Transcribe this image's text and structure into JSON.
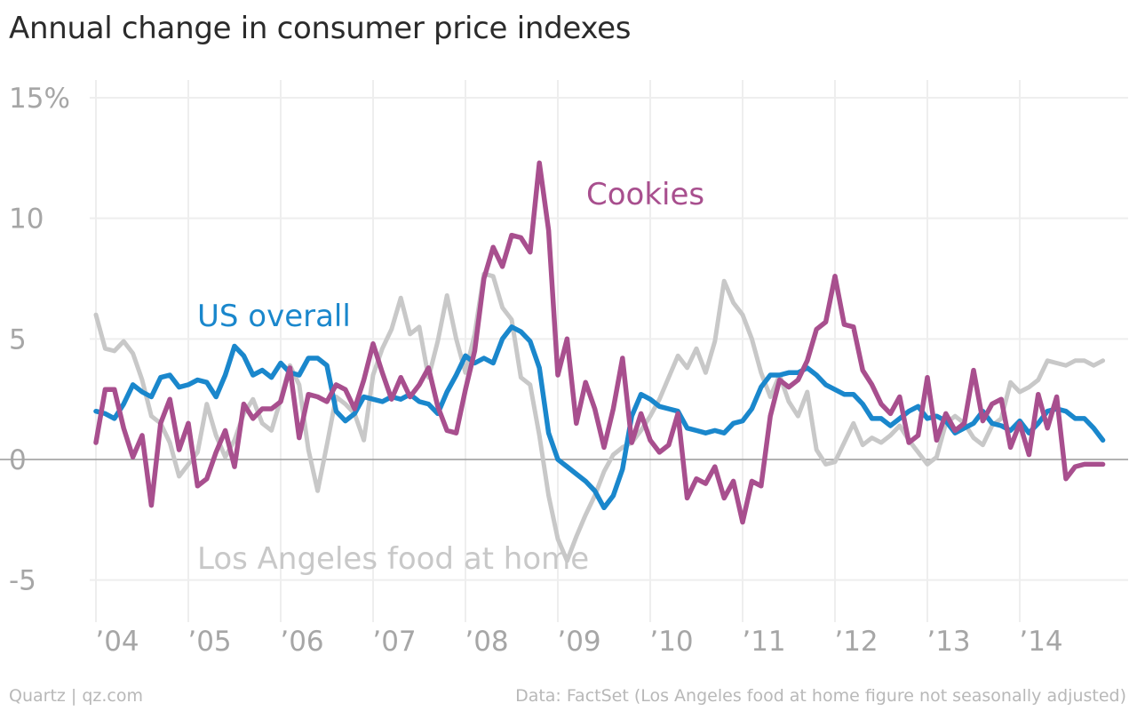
{
  "chart_data": {
    "type": "line",
    "title": "Annual change in consumer price indexes",
    "xlabel": "",
    "ylabel": "",
    "xlim": [
      2003.92,
      2014.95
    ],
    "ylim": [
      -6.5,
      16
    ],
    "y_ticks": [
      {
        "value": 15,
        "label": "15%"
      },
      {
        "value": 10,
        "label": "10"
      },
      {
        "value": 5,
        "label": "5"
      },
      {
        "value": 0,
        "label": "0"
      },
      {
        "value": -5,
        "label": "-5"
      }
    ],
    "x_ticks": [
      {
        "value": 2004,
        "label": "’04"
      },
      {
        "value": 2005,
        "label": "’05"
      },
      {
        "value": 2006,
        "label": "’06"
      },
      {
        "value": 2007,
        "label": "’07"
      },
      {
        "value": 2008,
        "label": "’08"
      },
      {
        "value": 2009,
        "label": "’09"
      },
      {
        "value": 2010,
        "label": "’10"
      },
      {
        "value": 2011,
        "label": "’11"
      },
      {
        "value": 2012,
        "label": "’12"
      },
      {
        "value": 2013,
        "label": "’13"
      },
      {
        "value": 2014,
        "label": "’14"
      }
    ],
    "grid": true,
    "legend": "inline labels",
    "series": [
      {
        "name": "Los Angeles food at home",
        "color": "#c8c8c8",
        "x": [
          2004.0,
          2004.1,
          2004.2,
          2004.3,
          2004.4,
          2004.5,
          2004.6,
          2004.7,
          2004.8,
          2004.9,
          2005.0,
          2005.1,
          2005.2,
          2005.3,
          2005.4,
          2005.5,
          2005.6,
          2005.7,
          2005.8,
          2005.9,
          2006.0,
          2006.1,
          2006.2,
          2006.3,
          2006.4,
          2006.5,
          2006.6,
          2006.7,
          2006.8,
          2006.9,
          2007.0,
          2007.1,
          2007.2,
          2007.3,
          2007.4,
          2007.5,
          2007.6,
          2007.7,
          2007.8,
          2007.9,
          2008.0,
          2008.1,
          2008.2,
          2008.3,
          2008.4,
          2008.5,
          2008.6,
          2008.7,
          2008.8,
          2008.9,
          2009.0,
          2009.1,
          2009.2,
          2009.3,
          2009.4,
          2009.5,
          2009.6,
          2009.7,
          2009.8,
          2009.9,
          2010.0,
          2010.1,
          2010.2,
          2010.3,
          2010.4,
          2010.5,
          2010.6,
          2010.7,
          2010.8,
          2010.9,
          2011.0,
          2011.1,
          2011.2,
          2011.3,
          2011.4,
          2011.5,
          2011.6,
          2011.7,
          2011.8,
          2011.9,
          2012.0,
          2012.1,
          2012.2,
          2012.3,
          2012.4,
          2012.5,
          2012.6,
          2012.7,
          2012.8,
          2012.9,
          2013.0,
          2013.1,
          2013.2,
          2013.3,
          2013.4,
          2013.5,
          2013.6,
          2013.7,
          2013.8,
          2013.9,
          2014.0,
          2014.1,
          2014.2,
          2014.3,
          2014.4,
          2014.5,
          2014.6,
          2014.7,
          2014.8,
          2014.9
        ],
        "values": [
          6.0,
          4.6,
          4.5,
          4.9,
          4.4,
          3.3,
          1.8,
          1.5,
          0.7,
          -0.7,
          -0.2,
          0.3,
          2.3,
          1.0,
          0.1,
          0.8,
          1.9,
          2.5,
          1.5,
          1.2,
          2.5,
          3.9,
          3.1,
          0.4,
          -1.3,
          0.6,
          2.6,
          2.3,
          1.9,
          0.8,
          3.5,
          4.6,
          5.4,
          6.7,
          5.2,
          5.5,
          3.4,
          4.9,
          6.8,
          5.0,
          3.6,
          5.2,
          7.7,
          7.6,
          6.3,
          5.8,
          3.4,
          3.1,
          1.0,
          -1.5,
          -3.3,
          -4.2,
          -3.2,
          -2.3,
          -1.5,
          -0.5,
          0.2,
          0.5,
          0.7,
          1.2,
          1.8,
          2.5,
          3.4,
          4.3,
          3.8,
          4.6,
          3.6,
          4.9,
          7.4,
          6.5,
          6.0,
          5.0,
          3.6,
          2.6,
          3.5,
          2.4,
          1.8,
          2.8,
          0.4,
          -0.2,
          -0.1,
          0.7,
          1.5,
          0.6,
          0.9,
          0.7,
          1.0,
          1.4,
          0.8,
          0.3,
          -0.2,
          0.1,
          1.5,
          1.8,
          1.5,
          0.9,
          0.6,
          1.4,
          1.7,
          3.2,
          2.8,
          3.0,
          3.3,
          4.1,
          4.0,
          3.9,
          4.1,
          4.1,
          3.9,
          4.1
        ]
      },
      {
        "name": "US overall",
        "color": "#1a87cc",
        "x": [
          2004.0,
          2004.1,
          2004.2,
          2004.3,
          2004.4,
          2004.5,
          2004.6,
          2004.7,
          2004.8,
          2004.9,
          2005.0,
          2005.1,
          2005.2,
          2005.3,
          2005.4,
          2005.5,
          2005.6,
          2005.7,
          2005.8,
          2005.9,
          2006.0,
          2006.1,
          2006.2,
          2006.3,
          2006.4,
          2006.5,
          2006.6,
          2006.7,
          2006.8,
          2006.9,
          2007.0,
          2007.1,
          2007.2,
          2007.3,
          2007.4,
          2007.5,
          2007.6,
          2007.7,
          2007.8,
          2007.9,
          2008.0,
          2008.1,
          2008.2,
          2008.3,
          2008.4,
          2008.5,
          2008.6,
          2008.7,
          2008.8,
          2008.9,
          2009.0,
          2009.1,
          2009.2,
          2009.3,
          2009.4,
          2009.5,
          2009.6,
          2009.7,
          2009.8,
          2009.9,
          2010.0,
          2010.1,
          2010.2,
          2010.3,
          2010.4,
          2010.5,
          2010.6,
          2010.7,
          2010.8,
          2010.9,
          2011.0,
          2011.1,
          2011.2,
          2011.3,
          2011.4,
          2011.5,
          2011.6,
          2011.7,
          2011.8,
          2011.9,
          2012.0,
          2012.1,
          2012.2,
          2012.3,
          2012.4,
          2012.5,
          2012.6,
          2012.7,
          2012.8,
          2012.9,
          2013.0,
          2013.1,
          2013.2,
          2013.3,
          2013.4,
          2013.5,
          2013.6,
          2013.7,
          2013.8,
          2013.9,
          2014.0,
          2014.1,
          2014.2,
          2014.3,
          2014.4,
          2014.5,
          2014.6,
          2014.7,
          2014.8,
          2014.9
        ],
        "values": [
          2.0,
          1.9,
          1.7,
          2.3,
          3.1,
          2.8,
          2.6,
          3.4,
          3.5,
          3.0,
          3.1,
          3.3,
          3.2,
          2.6,
          3.5,
          4.7,
          4.3,
          3.5,
          3.7,
          3.4,
          4.0,
          3.6,
          3.5,
          4.2,
          4.2,
          3.9,
          2.0,
          1.6,
          1.9,
          2.6,
          2.5,
          2.4,
          2.6,
          2.5,
          2.7,
          2.4,
          2.3,
          1.9,
          2.8,
          3.5,
          4.3,
          4.0,
          4.2,
          4.0,
          5.0,
          5.5,
          5.3,
          4.9,
          3.8,
          1.1,
          0.0,
          -0.3,
          -0.6,
          -0.9,
          -1.3,
          -2.0,
          -1.5,
          -0.4,
          1.8,
          2.7,
          2.5,
          2.2,
          2.1,
          2.0,
          1.3,
          1.2,
          1.1,
          1.2,
          1.1,
          1.5,
          1.6,
          2.1,
          3.0,
          3.5,
          3.5,
          3.6,
          3.6,
          3.8,
          3.5,
          3.1,
          2.9,
          2.7,
          2.7,
          2.3,
          1.7,
          1.7,
          1.4,
          1.7,
          2.0,
          2.2,
          1.7,
          1.8,
          1.6,
          1.1,
          1.3,
          1.5,
          2.0,
          1.5,
          1.4,
          1.2,
          1.6,
          1.1,
          1.5,
          2.0,
          2.1,
          2.0,
          1.7,
          1.7,
          1.3,
          0.8
        ]
      },
      {
        "name": "Cookies",
        "color": "#a84f8e",
        "x": [
          2004.0,
          2004.1,
          2004.2,
          2004.3,
          2004.4,
          2004.5,
          2004.6,
          2004.7,
          2004.8,
          2004.9,
          2005.0,
          2005.1,
          2005.2,
          2005.3,
          2005.4,
          2005.5,
          2005.6,
          2005.7,
          2005.8,
          2005.9,
          2006.0,
          2006.1,
          2006.2,
          2006.3,
          2006.4,
          2006.5,
          2006.6,
          2006.7,
          2006.8,
          2006.9,
          2007.0,
          2007.1,
          2007.2,
          2007.3,
          2007.4,
          2007.5,
          2007.6,
          2007.7,
          2007.8,
          2007.9,
          2008.0,
          2008.1,
          2008.2,
          2008.3,
          2008.4,
          2008.5,
          2008.6,
          2008.7,
          2008.8,
          2008.9,
          2009.0,
          2009.1,
          2009.2,
          2009.3,
          2009.4,
          2009.5,
          2009.6,
          2009.7,
          2009.8,
          2009.9,
          2010.0,
          2010.1,
          2010.2,
          2010.3,
          2010.4,
          2010.5,
          2010.6,
          2010.7,
          2010.8,
          2010.9,
          2011.0,
          2011.1,
          2011.2,
          2011.3,
          2011.4,
          2011.5,
          2011.6,
          2011.7,
          2011.8,
          2011.9,
          2012.0,
          2012.1,
          2012.2,
          2012.3,
          2012.4,
          2012.5,
          2012.6,
          2012.7,
          2012.8,
          2012.9,
          2013.0,
          2013.1,
          2013.2,
          2013.3,
          2013.4,
          2013.5,
          2013.6,
          2013.7,
          2013.8,
          2013.9,
          2014.0,
          2014.1,
          2014.2,
          2014.3,
          2014.4,
          2014.5,
          2014.6,
          2014.7,
          2014.8,
          2014.9
        ],
        "values": [
          0.7,
          2.9,
          2.9,
          1.3,
          0.1,
          1.0,
          -1.9,
          1.5,
          2.5,
          0.4,
          1.5,
          -1.1,
          -0.8,
          0.3,
          1.2,
          -0.3,
          2.3,
          1.7,
          2.1,
          2.1,
          2.4,
          3.8,
          0.9,
          2.7,
          2.6,
          2.4,
          3.1,
          2.9,
          2.1,
          3.3,
          4.8,
          3.6,
          2.5,
          3.4,
          2.6,
          3.1,
          3.8,
          2.2,
          1.2,
          1.1,
          2.9,
          4.5,
          7.5,
          8.8,
          8.0,
          9.3,
          9.2,
          8.6,
          12.3,
          9.5,
          3.5,
          5.0,
          1.5,
          3.2,
          2.1,
          0.5,
          2.1,
          4.2,
          0.7,
          1.9,
          0.8,
          0.3,
          0.6,
          1.9,
          -1.6,
          -0.8,
          -1.0,
          -0.3,
          -1.6,
          -0.9,
          -2.6,
          -0.9,
          -1.1,
          1.8,
          3.3,
          3.0,
          3.3,
          4.1,
          5.4,
          5.7,
          7.6,
          5.6,
          5.5,
          3.7,
          3.1,
          2.3,
          1.9,
          2.6,
          0.7,
          1.0,
          3.4,
          0.8,
          1.9,
          1.2,
          1.5,
          3.7,
          1.6,
          2.3,
          2.5,
          0.5,
          1.5,
          0.2,
          2.7,
          1.3,
          2.6,
          -0.8,
          -0.3,
          -0.2,
          -0.2,
          -0.2
        ]
      }
    ],
    "annotations": [
      {
        "text": "Cookies",
        "series": "Cookies"
      },
      {
        "text": "US overall",
        "series": "US overall"
      },
      {
        "text": "Los Angeles food at home",
        "series": "Los Angeles food at home"
      }
    ]
  },
  "footer": {
    "source_left": "Quartz | qz.com",
    "source_right": "Data: FactSet (Los Angeles food at home figure not seasonally adjusted)"
  }
}
